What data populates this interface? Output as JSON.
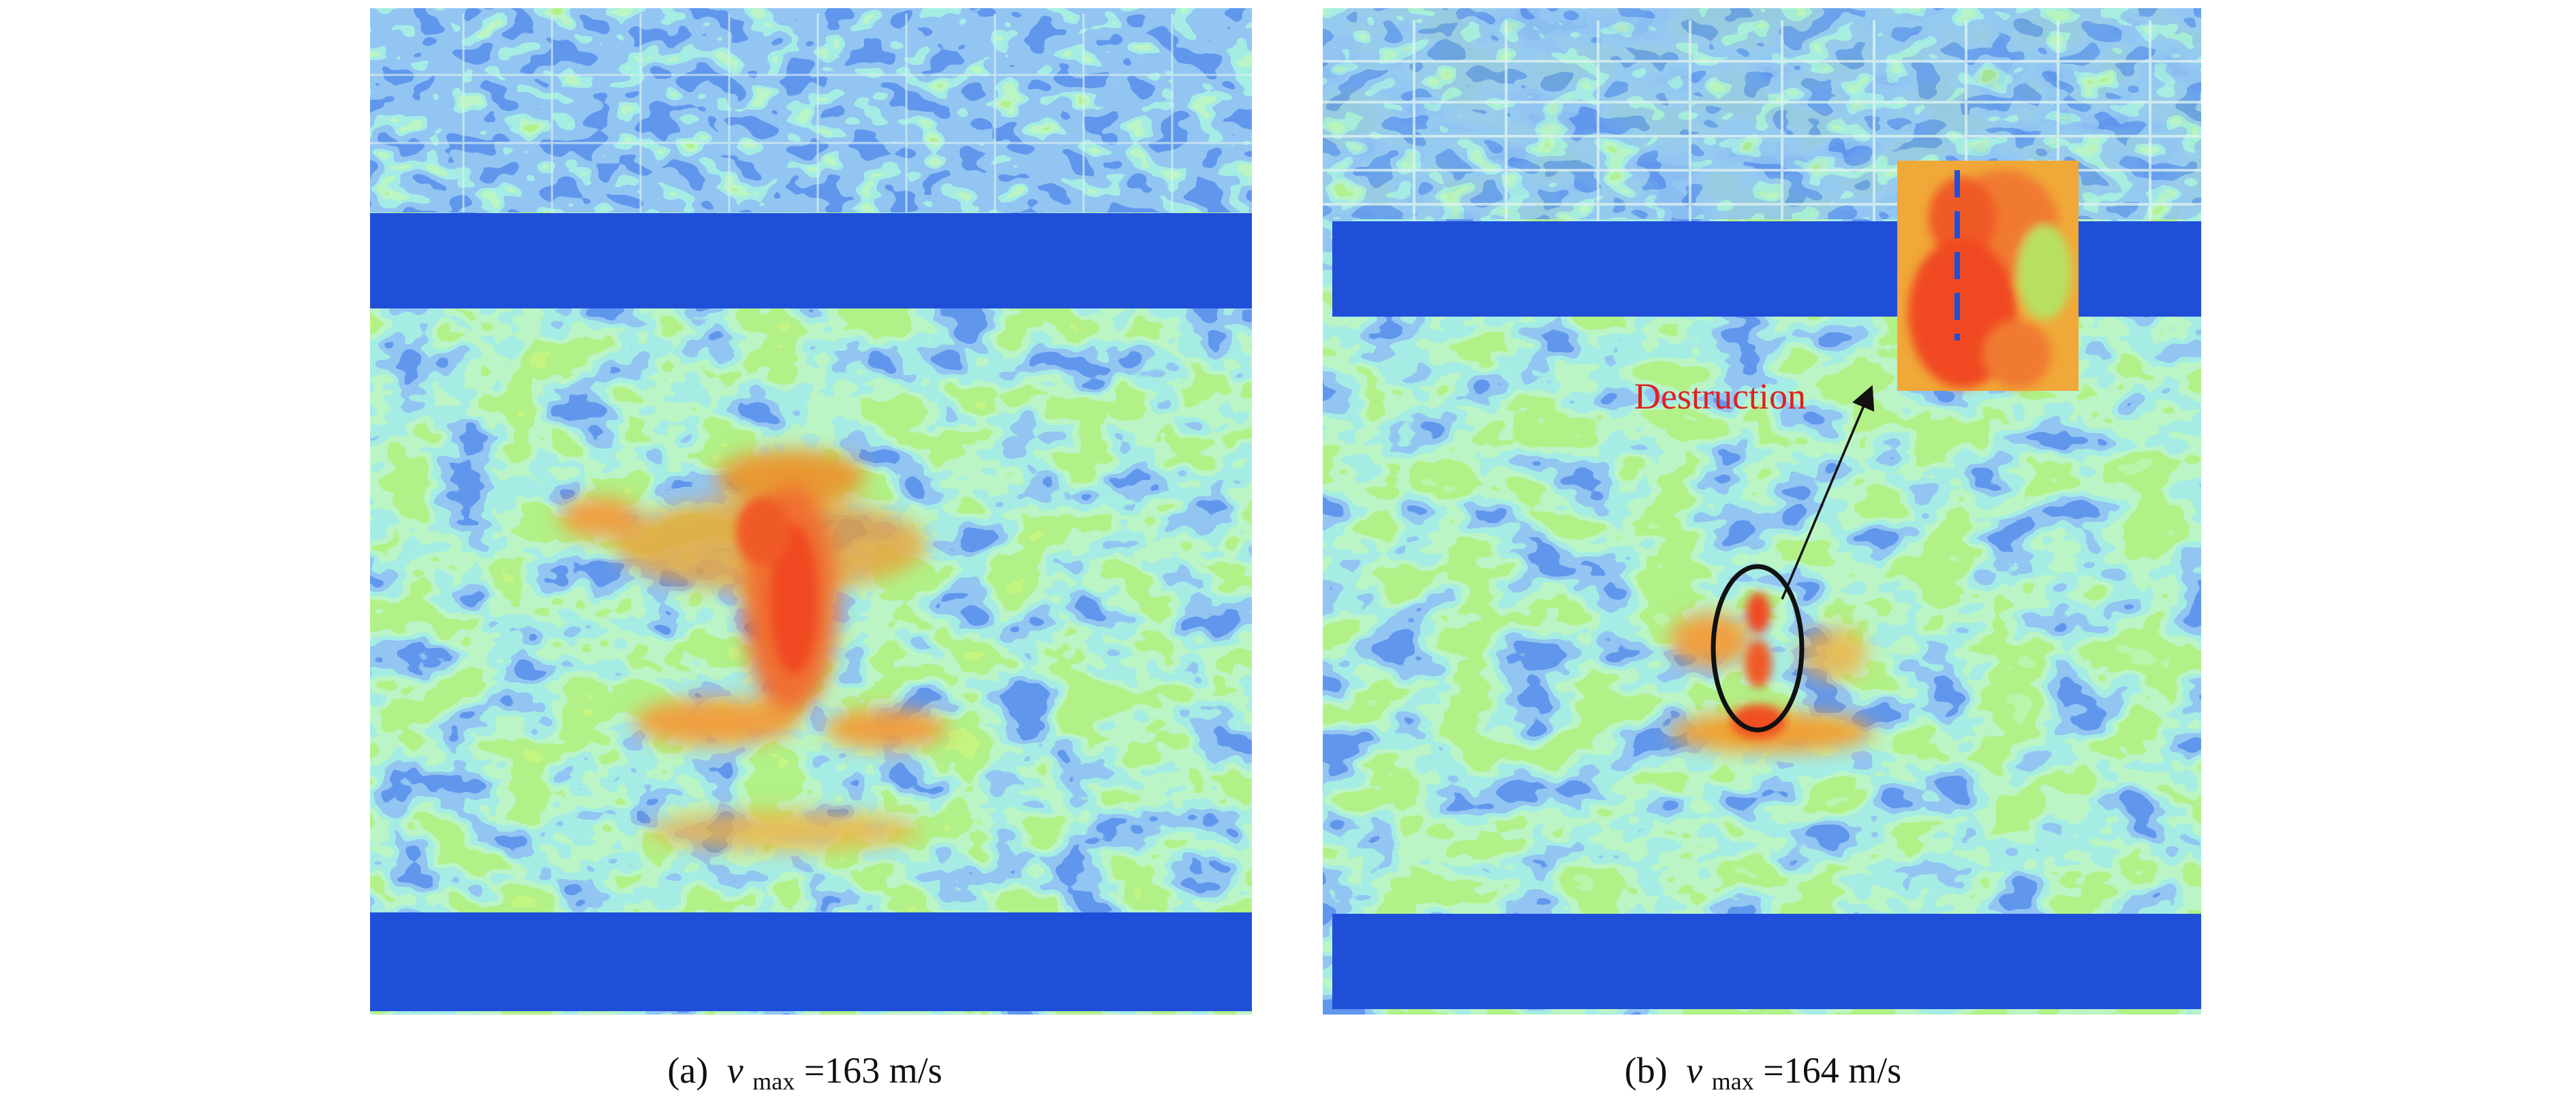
{
  "panels": [
    {
      "caption": {
        "label": "(a)",
        "symbol": "v",
        "subscript": "max",
        "value": "=163 m/s"
      }
    },
    {
      "caption": {
        "label": "(b)",
        "symbol": "v",
        "subscript": "max",
        "value": "=164 m/s"
      },
      "annotation": "Destruction"
    }
  ]
}
